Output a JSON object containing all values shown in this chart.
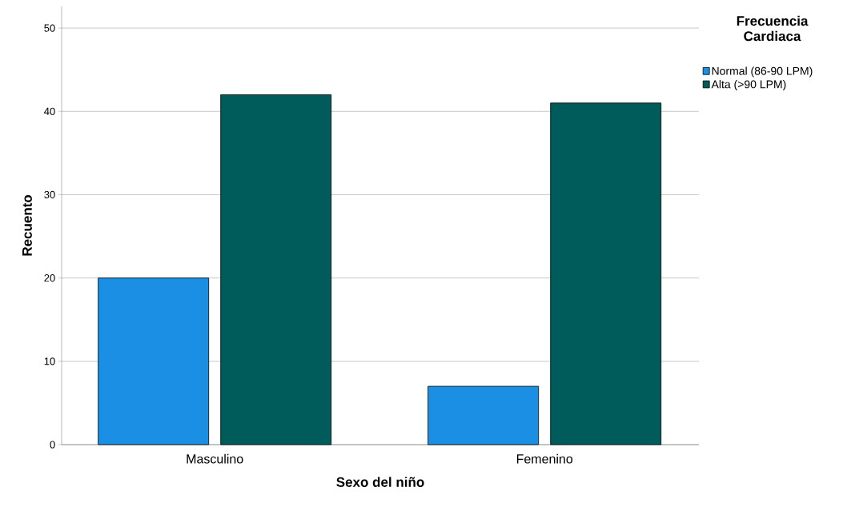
{
  "chart_data": {
    "type": "bar",
    "xlabel": "Sexo del niño",
    "ylabel": "Recuento",
    "legend_title": "Frecuencia Cardiaca",
    "categories": [
      "Masculino",
      "Femenino"
    ],
    "series": [
      {
        "name": "Normal (86-90 LPM)",
        "color": "#1a8fe3",
        "values": [
          20,
          7
        ]
      },
      {
        "name": "Alta (>90 LPM)",
        "color": "#005c5a",
        "values": [
          42,
          41
        ]
      }
    ],
    "ylim": [
      0,
      52.6
    ],
    "yticks": [
      0,
      10,
      20,
      30,
      40,
      50
    ],
    "grid": "y",
    "legend": "top right"
  }
}
